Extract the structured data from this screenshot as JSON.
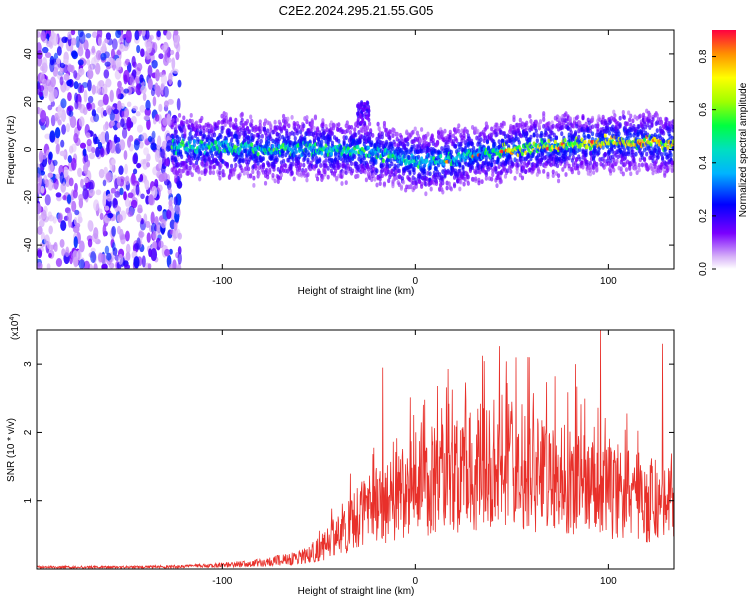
{
  "figure_title": "C2E2.2024.295.21.55.G05",
  "chart_data": [
    {
      "type": "heatmap",
      "xlabel": "Height of straight line (km)",
      "ylabel": "Frequency (Hz)",
      "xlim": [
        -196,
        134
      ],
      "ylim": [
        -50,
        50
      ],
      "xticks": [
        -100,
        0,
        100
      ],
      "yticks": [
        -40,
        -20,
        0,
        20,
        40
      ],
      "colorbar": {
        "label": "Normalized spectral amplitude",
        "range": [
          0,
          0.9
        ],
        "ticks": [
          "0.0",
          "0.2",
          "0.4",
          "0.6",
          "0.8"
        ]
      },
      "ridge": {
        "x": [
          -120,
          -100,
          -80,
          -60,
          -40,
          -25,
          -10,
          0,
          10,
          20,
          40,
          60,
          80,
          100,
          120,
          134
        ],
        "y": [
          1,
          1,
          0,
          0,
          0,
          -1,
          -3,
          -5,
          -5,
          -4,
          -1,
          1,
          2,
          3,
          3,
          2
        ]
      },
      "burst_region": {
        "x_from": -196,
        "x_to": -122,
        "y_from": -50,
        "y_to": 50
      },
      "secondary_branch": {
        "x": [
          -30,
          -24
        ],
        "y": [
          10,
          20
        ]
      }
    },
    {
      "type": "line",
      "xlabel": "Height of straight line (km)",
      "ylabel": "SNR (10 * v/v)",
      "y_scale_label": "(x10",
      "y_scale_exponent": "4",
      "y_scale_close": ")",
      "xlim": [
        -196,
        134
      ],
      "ylim": [
        0,
        3.5
      ],
      "xticks": [
        -100,
        0,
        100
      ],
      "yticks": [
        1,
        2,
        3
      ],
      "color": "#e8302a",
      "envelope": {
        "x": [
          -196,
          -150,
          -120,
          -100,
          -80,
          -60,
          -50,
          -40,
          -30,
          -20,
          -10,
          0,
          10,
          20,
          30,
          40,
          50,
          60,
          70,
          80,
          90,
          100,
          110,
          120,
          134
        ],
        "y": [
          0.03,
          0.03,
          0.04,
          0.06,
          0.1,
          0.18,
          0.3,
          0.55,
          0.8,
          1.0,
          1.15,
          1.3,
          1.45,
          1.5,
          1.6,
          1.65,
          1.7,
          1.55,
          1.45,
          1.4,
          1.35,
          1.25,
          1.2,
          1.1,
          1.0
        ]
      },
      "peaks": [
        {
          "x": -17,
          "y": 2.95
        },
        {
          "x": 50,
          "y": 2.45
        },
        {
          "x": 59,
          "y": 3.1
        },
        {
          "x": 83,
          "y": 3.0
        },
        {
          "x": 96,
          "y": 3.5
        },
        {
          "x": 128,
          "y": 3.3
        }
      ]
    }
  ]
}
